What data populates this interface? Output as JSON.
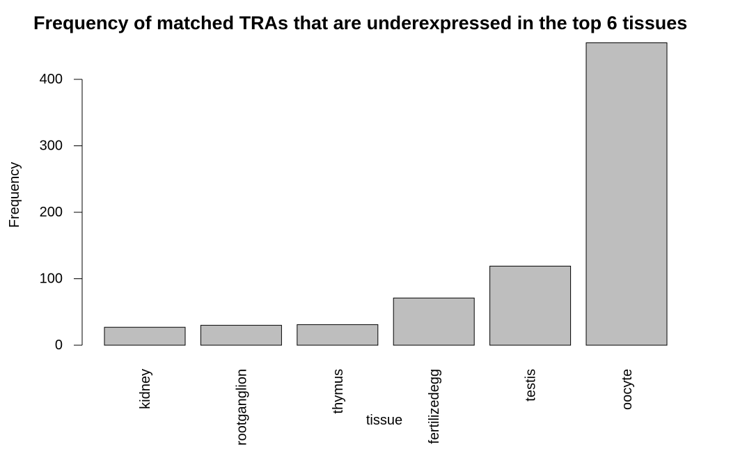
{
  "chart_data": {
    "type": "bar",
    "title": "Frequency of matched TRAs that are underexpressed in the top 6 tissues",
    "xlabel": "tissue",
    "ylabel": "Frequency",
    "categories": [
      "kidney",
      "rootganglion",
      "thymus",
      "fertilizedegg",
      "testis",
      "oocyte"
    ],
    "values": [
      27,
      30,
      31,
      71,
      119,
      455
    ],
    "ylim": [
      0,
      455
    ],
    "yticks": [
      0,
      100,
      200,
      300,
      400
    ],
    "bar_color": "#bebebe",
    "grid": false,
    "legend": "none"
  }
}
